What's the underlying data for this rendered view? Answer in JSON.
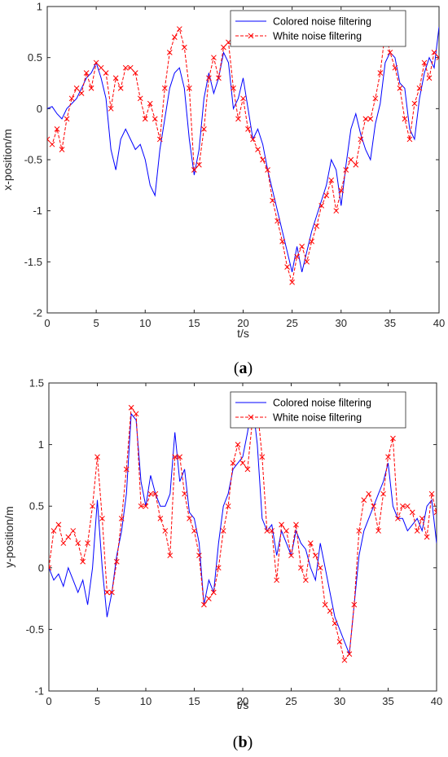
{
  "chart_data": [
    {
      "type": "line",
      "panel_label_open": "(",
      "panel_label": "a",
      "panel_label_close": ")",
      "xlabel": "t/s",
      "ylabel": "x-position/m",
      "xlim": [
        0,
        40
      ],
      "ylim": [
        -2,
        1
      ],
      "xticks": [
        0,
        5,
        10,
        15,
        20,
        25,
        30,
        35,
        40
      ],
      "yticks": [
        -2,
        -1.5,
        -1,
        -0.5,
        0,
        0.5,
        1
      ],
      "legend_position": "top-right",
      "series": [
        {
          "name": "Colored noise filtering",
          "color": "#0000FF",
          "style": "solid",
          "x": [
            0,
            0.5,
            1,
            1.5,
            2,
            2.5,
            3,
            3.5,
            4,
            4.5,
            5,
            5.5,
            6,
            6.5,
            7,
            7.5,
            8,
            8.5,
            9,
            9.5,
            10,
            10.5,
            11,
            11.5,
            12,
            12.5,
            13,
            13.5,
            14,
            14.5,
            15,
            15.5,
            16,
            16.5,
            17,
            17.5,
            18,
            18.5,
            19,
            19.5,
            20,
            20.5,
            21,
            21.5,
            22,
            22.5,
            23,
            23.5,
            24,
            24.5,
            25,
            25.5,
            26,
            26.5,
            27,
            27.5,
            28,
            28.5,
            29,
            29.5,
            30,
            30.5,
            31,
            31.5,
            32,
            32.5,
            33,
            33.5,
            34,
            34.5,
            35,
            35.5,
            36,
            36.5,
            37,
            37.5,
            38,
            38.5,
            39,
            39.5,
            40
          ],
          "y": [
            0,
            0.02,
            -0.05,
            -0.1,
            0,
            0.05,
            0.1,
            0.2,
            0.3,
            0.35,
            0.45,
            0.3,
            0.1,
            -0.4,
            -0.6,
            -0.3,
            -0.2,
            -0.3,
            -0.4,
            -0.35,
            -0.5,
            -0.75,
            -0.85,
            -0.4,
            -0.1,
            0.2,
            0.35,
            0.4,
            0.2,
            -0.3,
            -0.65,
            -0.4,
            0.1,
            0.35,
            0.15,
            0.3,
            0.55,
            0.45,
            0,
            0.1,
            0.3,
            0,
            -0.3,
            -0.2,
            -0.35,
            -0.6,
            -0.8,
            -1.0,
            -1.2,
            -1.4,
            -1.6,
            -1.35,
            -1.6,
            -1.4,
            -1.2,
            -1.05,
            -0.9,
            -0.75,
            -0.5,
            -0.6,
            -0.95,
            -0.55,
            -0.2,
            -0.05,
            -0.25,
            -0.4,
            -0.5,
            -0.15,
            0.05,
            0.45,
            0.55,
            0.5,
            0.25,
            0.2,
            -0.2,
            -0.3,
            0.1,
            0.35,
            0.5,
            0.4,
            0.8
          ]
        },
        {
          "name": "White noise filtering",
          "color": "#FF0000",
          "style": "dashed-x",
          "x": [
            0,
            0.5,
            1,
            1.5,
            2,
            2.5,
            3,
            3.5,
            4,
            4.5,
            5,
            5.5,
            6,
            6.5,
            7,
            7.5,
            8,
            8.5,
            9,
            9.5,
            10,
            10.5,
            11,
            11.5,
            12,
            12.5,
            13,
            13.5,
            14,
            14.5,
            15,
            15.5,
            16,
            16.5,
            17,
            17.5,
            18,
            18.5,
            19,
            19.5,
            20,
            20.5,
            21,
            21.5,
            22,
            22.5,
            23,
            23.5,
            24,
            24.5,
            25,
            25.5,
            26,
            26.5,
            27,
            27.5,
            28,
            28.5,
            29,
            29.5,
            30,
            30.5,
            31,
            31.5,
            32,
            32.5,
            33,
            33.5,
            34,
            34.5,
            35,
            35.5,
            36,
            36.5,
            37,
            37.5,
            38,
            38.5,
            39,
            39.5,
            40
          ],
          "y": [
            -0.3,
            -0.35,
            -0.2,
            -0.4,
            -0.1,
            0.1,
            0.2,
            0.15,
            0.35,
            0.2,
            0.45,
            0.4,
            0.35,
            0,
            0.3,
            0.2,
            0.4,
            0.4,
            0.35,
            0.1,
            -0.1,
            0.05,
            -0.1,
            -0.3,
            0.2,
            0.55,
            0.7,
            0.78,
            0.6,
            0.2,
            -0.6,
            -0.55,
            -0.2,
            0.3,
            0.5,
            0.3,
            0.6,
            0.65,
            0.2,
            -0.1,
            0.1,
            -0.2,
            -0.3,
            -0.4,
            -0.5,
            -0.6,
            -0.9,
            -1.1,
            -1.3,
            -1.55,
            -1.7,
            -1.45,
            -1.35,
            -1.5,
            -1.3,
            -1.15,
            -0.95,
            -0.85,
            -0.7,
            -1.0,
            -0.8,
            -0.6,
            -0.5,
            -0.55,
            -0.3,
            -0.1,
            -0.1,
            0.1,
            0.35,
            0.75,
            0.55,
            0.4,
            0.2,
            -0.1,
            -0.3,
            0.05,
            0.2,
            0.45,
            0.3,
            0.55,
            0.5
          ]
        }
      ]
    },
    {
      "type": "line",
      "panel_label_open": "(",
      "panel_label": "b",
      "panel_label_close": ")",
      "xlabel": "t/s",
      "ylabel": "y-position/m",
      "xlim": [
        0,
        40
      ],
      "ylim": [
        -1,
        1.5
      ],
      "xticks": [
        0,
        5,
        10,
        15,
        20,
        25,
        30,
        35,
        40
      ],
      "yticks": [
        -1,
        -0.5,
        0,
        0.5,
        1,
        1.5
      ],
      "legend_position": "top-right",
      "series": [
        {
          "name": "Colored noise filtering",
          "color": "#0000FF",
          "style": "solid",
          "x": [
            0,
            0.5,
            1,
            1.5,
            2,
            2.5,
            3,
            3.5,
            4,
            4.5,
            5,
            5.5,
            6,
            6.5,
            7,
            7.5,
            8,
            8.5,
            9,
            9.5,
            10,
            10.5,
            11,
            11.5,
            12,
            12.5,
            13,
            13.5,
            14,
            14.5,
            15,
            15.5,
            16,
            16.5,
            17,
            17.5,
            18,
            18.5,
            19,
            19.5,
            20,
            20.5,
            21,
            21.5,
            22,
            22.5,
            23,
            23.5,
            24,
            24.5,
            25,
            25.5,
            26,
            26.5,
            27,
            27.5,
            28,
            28.5,
            29,
            29.5,
            30,
            30.5,
            31,
            31.5,
            32,
            32.5,
            33,
            33.5,
            34,
            34.5,
            35,
            35.5,
            36,
            36.5,
            37,
            37.5,
            38,
            38.5,
            39,
            39.5,
            40
          ],
          "y": [
            0,
            -0.1,
            -0.05,
            -0.15,
            0,
            -0.1,
            -0.2,
            -0.1,
            -0.3,
            0,
            0.55,
            0,
            -0.4,
            -0.2,
            0.1,
            0.3,
            0.6,
            1.25,
            1.2,
            0.7,
            0.5,
            0.75,
            0.6,
            0.5,
            0.5,
            0.6,
            1.1,
            0.7,
            0.8,
            0.45,
            0.4,
            0.2,
            -0.3,
            -0.1,
            -0.2,
            0.2,
            0.5,
            0.6,
            0.8,
            0.85,
            0.9,
            1.1,
            1.35,
            1.0,
            0.4,
            0.3,
            0.35,
            0.1,
            0.3,
            0.2,
            0.1,
            0.3,
            0.2,
            0.15,
            0,
            -0.1,
            0.2,
            0,
            -0.2,
            -0.4,
            -0.5,
            -0.6,
            -0.7,
            -0.3,
            0.1,
            0.3,
            0.4,
            0.5,
            0.6,
            0.7,
            0.85,
            0.5,
            0.4,
            0.4,
            0.3,
            0.35,
            0.4,
            0.3,
            0.5,
            0.55,
            0.2
          ]
        },
        {
          "name": "White noise filtering",
          "color": "#FF0000",
          "style": "dashed-x",
          "x": [
            0,
            0.5,
            1,
            1.5,
            2,
            2.5,
            3,
            3.5,
            4,
            4.5,
            5,
            5.5,
            6,
            6.5,
            7,
            7.5,
            8,
            8.5,
            9,
            9.5,
            10,
            10.5,
            11,
            11.5,
            12,
            12.5,
            13,
            13.5,
            14,
            14.5,
            15,
            15.5,
            16,
            16.5,
            17,
            17.5,
            18,
            18.5,
            19,
            19.5,
            20,
            20.5,
            21,
            21.5,
            22,
            22.5,
            23,
            23.5,
            24,
            24.5,
            25,
            25.5,
            26,
            26.5,
            27,
            27.5,
            28,
            28.5,
            29,
            29.5,
            30,
            30.5,
            31,
            31.5,
            32,
            32.5,
            33,
            33.5,
            34,
            34.5,
            35,
            35.5,
            36,
            36.5,
            37,
            37.5,
            38,
            38.5,
            39,
            39.5,
            40
          ],
          "y": [
            0,
            0.3,
            0.35,
            0.2,
            0.25,
            0.3,
            0.2,
            0.05,
            0.2,
            0.5,
            0.9,
            0.4,
            -0.2,
            -0.2,
            0.05,
            0.4,
            0.8,
            1.3,
            1.25,
            0.5,
            0.5,
            0.6,
            0.6,
            0.4,
            0.3,
            0.1,
            0.9,
            0.9,
            0.6,
            0.4,
            0.3,
            0.1,
            -0.3,
            -0.25,
            -0.2,
            0,
            0.3,
            0.5,
            0.85,
            1.0,
            0.85,
            0.8,
            1.2,
            1.3,
            0.9,
            0.3,
            0.3,
            -0.1,
            0.35,
            0.3,
            0.1,
            0.35,
            0,
            -0.1,
            0.2,
            0.1,
            0,
            -0.3,
            -0.35,
            -0.45,
            -0.6,
            -0.75,
            -0.7,
            -0.3,
            0.3,
            0.55,
            0.6,
            0.5,
            0.3,
            0.6,
            0.9,
            1.05,
            0.4,
            0.5,
            0.5,
            0.45,
            0.3,
            0.4,
            0.25,
            0.6,
            0.45
          ]
        }
      ]
    }
  ]
}
